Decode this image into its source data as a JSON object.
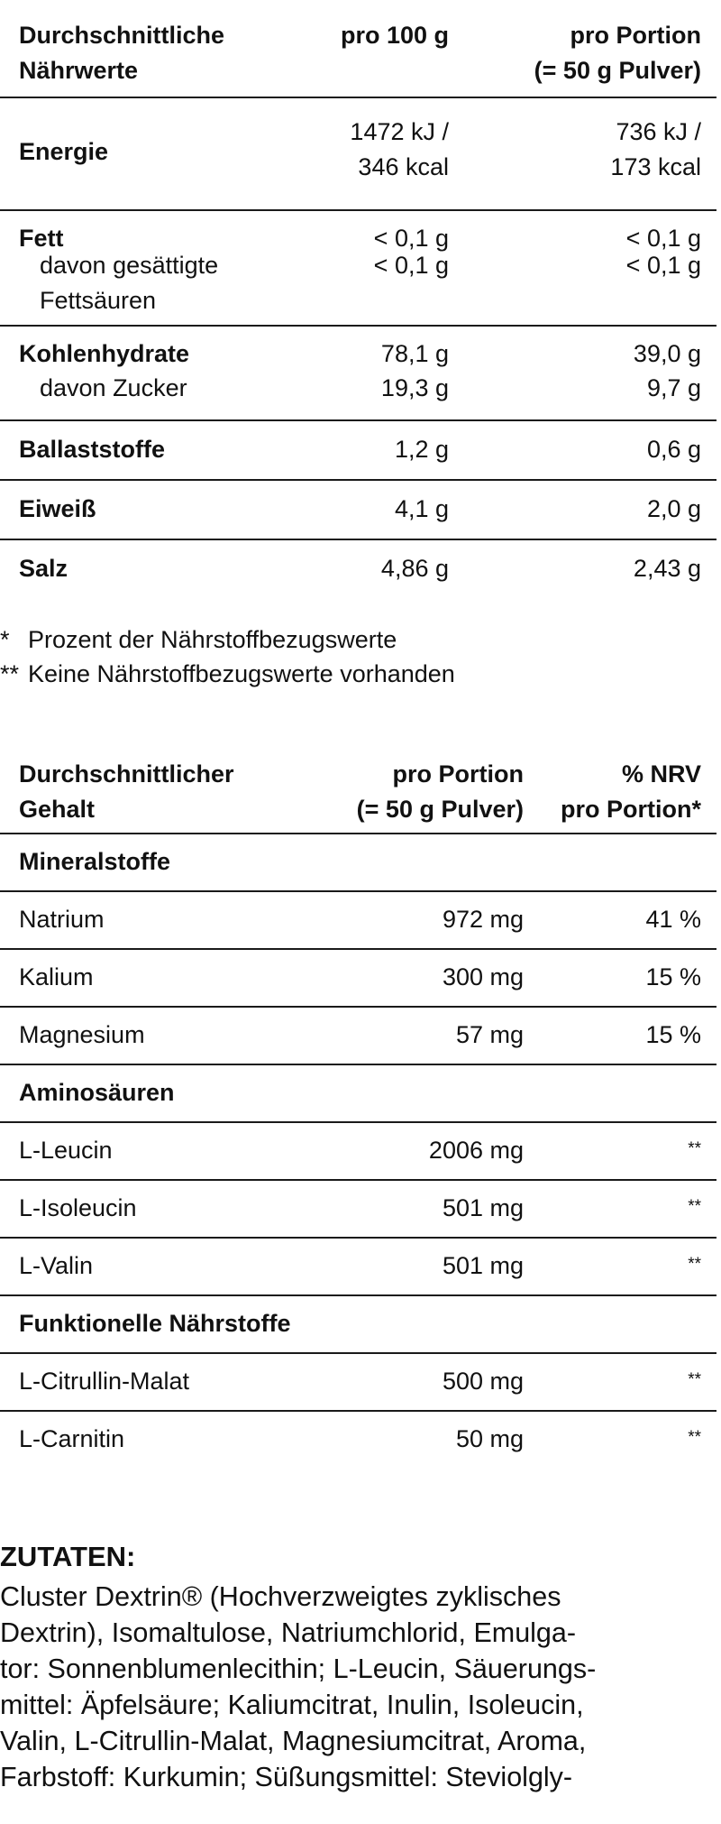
{
  "table1": {
    "header": {
      "col1": "Durchschnittliche\nNährwerte",
      "col2": "pro 100 g",
      "col3": "pro Portion\n(= 50 g Pulver)"
    },
    "rows": {
      "energie": {
        "name": "Energie",
        "per100": "1472 kJ /\n346 kcal",
        "perPortion": "736 kJ /\n173 kcal"
      },
      "fett": {
        "name": "Fett",
        "per100": "< 0,1 g",
        "perPortion": "< 0,1 g"
      },
      "fett_sub": {
        "name": "davon gesättigte\nFettsäuren",
        "per100": "< 0,1 g",
        "perPortion": "< 0,1 g"
      },
      "kh": {
        "name": "Kohlenhydrate",
        "per100": "78,1 g",
        "perPortion": "39,0 g"
      },
      "kh_sub": {
        "name": "davon Zucker",
        "per100": "19,3 g",
        "perPortion": "9,7 g"
      },
      "ballast": {
        "name": "Ballaststoffe",
        "per100": "1,2 g",
        "perPortion": "0,6 g"
      },
      "eiweiss": {
        "name": "Eiweiß",
        "per100": "4,1 g",
        "perPortion": "2,0 g"
      },
      "salz": {
        "name": "Salz",
        "per100": "4,86 g",
        "perPortion": "2,43 g"
      }
    }
  },
  "footnotes": [
    {
      "mark": "*",
      "text": "Prozent der Nährstoffbezugswerte"
    },
    {
      "mark": "**",
      "text": "Keine Nährstoffbezugswerte vorhanden"
    }
  ],
  "table2": {
    "header": {
      "col1": "Durchschnittlicher\nGehalt",
      "col2": "pro Portion\n(= 50 g Pulver)",
      "col3": "% NRV\npro Portion*"
    },
    "rows": [
      {
        "label": "Mineralstoffe",
        "section": true,
        "amount": "",
        "nrv": ""
      },
      {
        "label": "Natrium",
        "section": false,
        "amount": "972 mg",
        "nrv": "41 %"
      },
      {
        "label": "Kalium",
        "section": false,
        "amount": "300 mg",
        "nrv": "15 %"
      },
      {
        "label": "Magnesium",
        "section": false,
        "amount": "57 mg",
        "nrv": "15 %"
      },
      {
        "label": "Aminosäuren",
        "section": true,
        "amount": "",
        "nrv": ""
      },
      {
        "label": "L-Leucin",
        "section": false,
        "amount": "2006 mg",
        "nrv": "**"
      },
      {
        "label": "L-Isoleucin",
        "section": false,
        "amount": "501 mg",
        "nrv": "**"
      },
      {
        "label": "L-Valin",
        "section": false,
        "amount": "501 mg",
        "nrv": "**"
      },
      {
        "label": "Funktionelle Nährstoffe",
        "section": true,
        "amount": "",
        "nrv": ""
      },
      {
        "label": "L-Citrullin-Malat",
        "section": false,
        "amount": "500 mg",
        "nrv": "**"
      },
      {
        "label": "L-Carnitin",
        "section": false,
        "amount": "50 mg",
        "nrv": "**"
      }
    ]
  },
  "ingredients": {
    "title": "ZUTATEN:",
    "text": "Cluster Dextrin® (Hochverzweigtes zyklisches\nDextrin), Isomaltulose, Natriumchlorid, Emulga-\ntor: Sonnenblumenlecithin; L-Leucin, Säuerungs-\nmittel: Äpfelsäure; Kaliumcitrat, Inulin, Isoleucin,\nValin, L-Citrullin-Malat, Magnesiumcitrat, Aroma,\nFarbstoff: Kurkumin; Süßungsmittel: Steviolgly-"
  }
}
